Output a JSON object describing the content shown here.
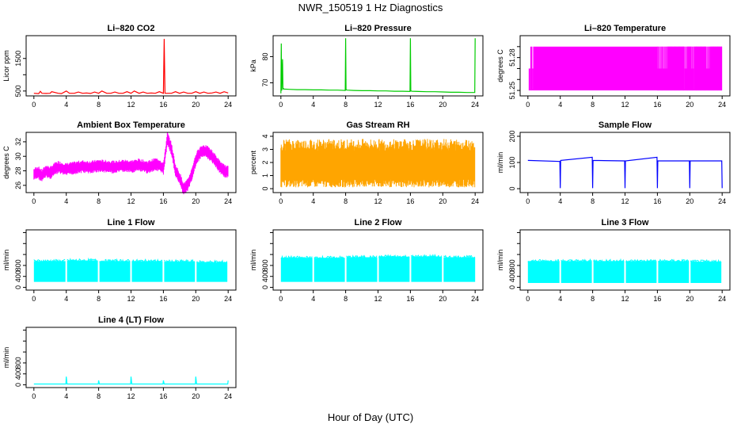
{
  "figure": {
    "title": "NWR_150519  1 Hz Diagnostics",
    "xlabel": "Hour of Day (UTC)"
  },
  "chart_data": [
    {
      "type": "line",
      "title": "Li–820 CO2",
      "ylabel": "Licor ppm",
      "color": "#ff0000",
      "xlim": [
        0,
        24
      ],
      "ylim": [
        350,
        2200
      ],
      "xticks": [
        0,
        4,
        8,
        12,
        16,
        20,
        24
      ],
      "yticks": [
        500,
        1000,
        1500
      ],
      "ytick_labels": [
        "500",
        "",
        "1500"
      ],
      "x": [
        0,
        0.6,
        0.8,
        1,
        1.5,
        2,
        2.2,
        3,
        3.4,
        4,
        4.4,
        5,
        5.5,
        6,
        6.5,
        7,
        7.5,
        8,
        8.4,
        9,
        9.5,
        10,
        10.5,
        11,
        11.5,
        12,
        12.4,
        13,
        13.5,
        14,
        14.5,
        15,
        15.5,
        16,
        16.1,
        16.2,
        17,
        17.5,
        18,
        18.5,
        19,
        19.5,
        20,
        20.5,
        21,
        21.5,
        22,
        22.5,
        23,
        23.5,
        24
      ],
      "y": [
        430,
        420,
        490,
        430,
        425,
        430,
        480,
        430,
        420,
        500,
        430,
        430,
        470,
        430,
        440,
        425,
        470,
        430,
        500,
        430,
        430,
        470,
        430,
        430,
        480,
        430,
        500,
        430,
        470,
        430,
        440,
        430,
        480,
        430,
        2100,
        430,
        430,
        480,
        430,
        470,
        430,
        430,
        480,
        430,
        470,
        430,
        440,
        470,
        430,
        480,
        440
      ]
    },
    {
      "type": "line",
      "title": "Li–820 Pressure",
      "ylabel": "kPa",
      "color": "#00cc00",
      "xlim": [
        0,
        24
      ],
      "ylim": [
        65,
        88
      ],
      "xticks": [
        0,
        4,
        8,
        12,
        16,
        20,
        24
      ],
      "yticks": [
        70,
        80
      ],
      "x": [
        0,
        0.05,
        0.1,
        0.2,
        0.25,
        0.3,
        0.4,
        1,
        2,
        3,
        4,
        5,
        6,
        7,
        7.95,
        8,
        8.05,
        8.2,
        9,
        10,
        11,
        12,
        13,
        14,
        15,
        15.95,
        16,
        16.05,
        16.2,
        17,
        18,
        19,
        20,
        21,
        22,
        23,
        23.95,
        24
      ],
      "y": [
        66,
        85,
        67,
        79,
        67.5,
        67.8,
        67.6,
        67.5,
        67.4,
        67.4,
        67.3,
        67.3,
        67.2,
        67.2,
        67.1,
        87,
        67.3,
        67.2,
        67.1,
        67.0,
        67.0,
        66.9,
        66.9,
        66.8,
        66.8,
        66.7,
        87,
        66.9,
        66.8,
        66.7,
        66.6,
        66.6,
        66.5,
        66.4,
        66.4,
        66.3,
        66.3,
        87
      ]
    },
    {
      "type": "line",
      "title": "Li–820 Temperature",
      "ylabel": "degrees C",
      "color": "#ff00ff",
      "xlim": [
        0,
        24
      ],
      "ylim": [
        51.245,
        51.3
      ],
      "xticks": [
        0,
        4,
        8,
        12,
        16,
        20,
        24
      ],
      "yticks": [
        51.25,
        51.26,
        51.27,
        51.28,
        51.29
      ],
      "ytick_labels": [
        "51.25",
        "",
        "",
        "51.28",
        ""
      ],
      "note": "values alternate between 51.25 and 51.29 at 1 Hz",
      "x": [
        0,
        0.2,
        0.3,
        0.6,
        0.7,
        0.8,
        1,
        16,
        16.1,
        17.2,
        17.3,
        19,
        19.5,
        20,
        20.5,
        21,
        22,
        22.5,
        23,
        23.5,
        24
      ],
      "y": [
        51.27,
        51.29,
        51.25,
        51.29,
        51.26,
        51.29,
        51.25,
        51.29,
        51.27,
        51.29,
        51.25,
        51.29,
        51.27,
        51.29,
        51.27,
        51.29,
        51.27,
        51.29,
        51.27,
        51.29,
        51.25
      ]
    },
    {
      "type": "line",
      "title": "Ambient Box Temperature",
      "ylabel": "degrees C",
      "color": "#ff00ff",
      "xlim": [
        0,
        24
      ],
      "ylim": [
        25,
        33.3
      ],
      "xticks": [
        0,
        4,
        8,
        12,
        16,
        20,
        24
      ],
      "yticks": [
        26,
        28,
        30,
        32
      ],
      "x": [
        0,
        0.5,
        1,
        1.5,
        2,
        2.5,
        3,
        4,
        5,
        6,
        7,
        8,
        9,
        10,
        11,
        12,
        13,
        14,
        15,
        15.5,
        16,
        16.5,
        17,
        17.5,
        18,
        18.5,
        19,
        19.5,
        20,
        20.5,
        21,
        21.5,
        22,
        22.5,
        23,
        23.5,
        24
      ],
      "y": [
        27.5,
        27.8,
        27.3,
        28.0,
        27.7,
        28.2,
        28.5,
        28.2,
        28.4,
        28.6,
        28.5,
        28.7,
        28.6,
        28.5,
        28.7,
        28.6,
        28.8,
        28.5,
        28.9,
        28.8,
        28.3,
        32.5,
        31,
        28,
        27,
        25.5,
        26,
        27.5,
        29.5,
        30.5,
        30.8,
        30.5,
        30,
        29.3,
        28.5,
        28,
        27.8
      ]
    },
    {
      "type": "line",
      "title": "Gas Stream RH",
      "ylabel": "percent",
      "color": "#ffa500",
      "xlim": [
        0,
        24
      ],
      "ylim": [
        -0.3,
        4.3
      ],
      "xticks": [
        0,
        4,
        8,
        12,
        16,
        20,
        24
      ],
      "yticks": [
        0,
        1,
        2,
        3,
        4
      ],
      "note": "rapid oscillation between about 0.2 and 3.5 percent",
      "x": [
        0,
        4,
        8,
        12,
        16,
        20,
        24
      ],
      "y": [
        1.8,
        1.8,
        1.8,
        1.8,
        1.8,
        1.8,
        1.8
      ],
      "y_low": [
        0.2,
        0.1,
        0.2,
        0.3,
        0.1,
        0.2,
        0.2
      ],
      "y_high": [
        3.5,
        3.6,
        3.5,
        3.4,
        3.7,
        3.8,
        3.5
      ]
    },
    {
      "type": "line",
      "title": "Sample Flow",
      "ylabel": "ml/min",
      "color": "#0000ff",
      "xlim": [
        0,
        24
      ],
      "ylim": [
        -15,
        215
      ],
      "xticks": [
        0,
        4,
        8,
        12,
        16,
        20,
        24
      ],
      "yticks": [
        0,
        100,
        200
      ],
      "x": [
        0,
        3.95,
        4,
        4.05,
        7.95,
        8,
        8.05,
        11.95,
        12,
        12.05,
        15.95,
        16,
        16.05,
        19.95,
        20,
        20.05,
        23.95,
        24
      ],
      "y": [
        108,
        104,
        2,
        108,
        120,
        2,
        108,
        106,
        2,
        106,
        120,
        2,
        106,
        106,
        2,
        106,
        106,
        2
      ]
    },
    {
      "type": "area",
      "title": "Line 1 Flow",
      "ylabel": "ml/min",
      "color": "#00ffff",
      "xlim": [
        0,
        24
      ],
      "ylim": [
        -50,
        1050
      ],
      "xticks": [
        0,
        4,
        8,
        12,
        16,
        20,
        24
      ],
      "yticks": [
        0,
        200,
        400,
        600,
        800,
        1000
      ],
      "ytick_labels": [
        "0",
        "400",
        "800"
      ],
      "blocks": [
        [
          0,
          3.9,
          480
        ],
        [
          4.1,
          7.9,
          490
        ],
        [
          8.1,
          11.9,
          480
        ],
        [
          12.1,
          15.9,
          480
        ],
        [
          16.1,
          19.9,
          470
        ],
        [
          20.1,
          23.9,
          460
        ]
      ],
      "baseline": 100
    },
    {
      "type": "area",
      "title": "Line 2 Flow",
      "ylabel": "ml/min",
      "color": "#00ffff",
      "xlim": [
        0,
        24
      ],
      "ylim": [
        -50,
        1050
      ],
      "xticks": [
        0,
        4,
        8,
        12,
        16,
        20,
        24
      ],
      "yticks": [
        0,
        200,
        400,
        600,
        800,
        1000
      ],
      "ytick_labels": [
        "0",
        "400",
        "800"
      ],
      "blocks": [
        [
          0,
          3.9,
          540
        ],
        [
          4.1,
          7.9,
          540
        ],
        [
          8.1,
          11.9,
          550
        ],
        [
          12.1,
          15.9,
          560
        ],
        [
          16.1,
          19.9,
          560
        ],
        [
          20.1,
          24,
          550
        ]
      ],
      "baseline": 100
    },
    {
      "type": "area",
      "title": "Line 3 Flow",
      "ylabel": "ml/min",
      "color": "#00ffff",
      "xlim": [
        0,
        24
      ],
      "ylim": [
        -50,
        1050
      ],
      "xticks": [
        0,
        4,
        8,
        12,
        16,
        20,
        24
      ],
      "yticks": [
        0,
        200,
        400,
        600,
        800,
        1000
      ],
      "ytick_labels": [
        "0",
        "400",
        "800"
      ],
      "blocks": [
        [
          0,
          3.9,
          480
        ],
        [
          4.1,
          7.9,
          480
        ],
        [
          8.1,
          11.9,
          480
        ],
        [
          12.1,
          15.9,
          480
        ],
        [
          16.1,
          19.9,
          480
        ],
        [
          20.1,
          23.9,
          470
        ]
      ],
      "baseline": 80
    },
    {
      "type": "line",
      "title": "Line 4 (LT) Flow",
      "ylabel": "ml/min",
      "color": "#00ffff",
      "xlim": [
        0,
        24
      ],
      "ylim": [
        -50,
        1050
      ],
      "xticks": [
        0,
        4,
        8,
        12,
        16,
        20,
        24
      ],
      "yticks": [
        0,
        200,
        400,
        600,
        800,
        1000
      ],
      "ytick_labels": [
        "0",
        "400",
        "800"
      ],
      "x": [
        0,
        3.95,
        4,
        4.1,
        7.95,
        8,
        8.1,
        11.95,
        12,
        12.1,
        15.95,
        16,
        16.1,
        19.95,
        20,
        20.1,
        23.95,
        24
      ],
      "y": [
        15,
        15,
        150,
        15,
        15,
        80,
        15,
        15,
        150,
        15,
        15,
        80,
        15,
        15,
        150,
        15,
        15,
        80
      ]
    }
  ]
}
